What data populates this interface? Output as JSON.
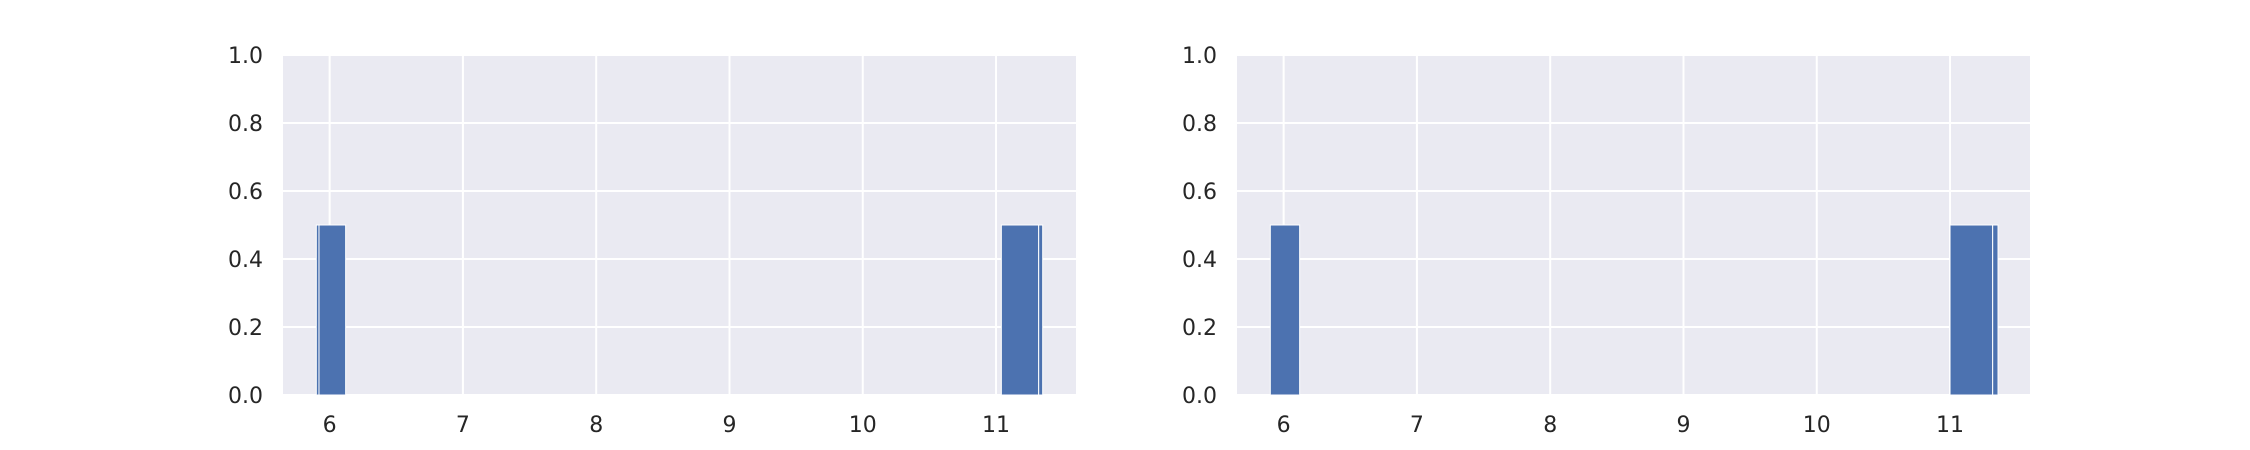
{
  "chart_data": [
    {
      "type": "bar",
      "title": "",
      "xlabel": "",
      "ylabel": "",
      "xlim": [
        5.65,
        11.6
      ],
      "ylim": [
        0,
        1.0
      ],
      "grid": true,
      "legend": "none",
      "colors": {
        "bar": "#4c72b0",
        "edge": "#ffffff",
        "background": "#eaeaf2",
        "grid": "#ffffff"
      },
      "x_ticks": [
        "6",
        "7",
        "8",
        "9",
        "10",
        "11"
      ],
      "x_tick_values": [
        6,
        7,
        8,
        9,
        10,
        11
      ],
      "y_ticks": [
        "0.0",
        "0.2",
        "0.4",
        "0.6",
        "0.8",
        "1.0"
      ],
      "y_tick_values": [
        0,
        0.2,
        0.4,
        0.6,
        0.8,
        1.0
      ],
      "bars": [
        {
          "x0": 5.9,
          "x1": 5.92,
          "value": 0.5
        },
        {
          "x0": 5.92,
          "x1": 6.12,
          "value": 0.5
        },
        {
          "x0": 11.04,
          "x1": 11.32,
          "value": 0.5
        },
        {
          "x0": 11.32,
          "x1": 11.35,
          "value": 0.5
        }
      ]
    },
    {
      "type": "bar",
      "title": "",
      "xlabel": "",
      "ylabel": "",
      "xlim": [
        5.65,
        11.6
      ],
      "ylim": [
        0,
        1.0
      ],
      "grid": true,
      "legend": "none",
      "colors": {
        "bar": "#4c72b0",
        "edge": "#ffffff",
        "background": "#eaeaf2",
        "grid": "#ffffff"
      },
      "x_ticks": [
        "6",
        "7",
        "8",
        "9",
        "10",
        "11"
      ],
      "x_tick_values": [
        6,
        7,
        8,
        9,
        10,
        11
      ],
      "y_ticks": [
        "0.0",
        "0.2",
        "0.4",
        "0.6",
        "0.8",
        "1.0"
      ],
      "y_tick_values": [
        0,
        0.2,
        0.4,
        0.6,
        0.8,
        1.0
      ],
      "bars": [
        {
          "x0": 5.9,
          "x1": 6.12,
          "value": 0.5
        },
        {
          "x0": 11.0,
          "x1": 11.32,
          "value": 0.5
        },
        {
          "x0": 11.32,
          "x1": 11.36,
          "value": 0.5
        }
      ]
    }
  ]
}
